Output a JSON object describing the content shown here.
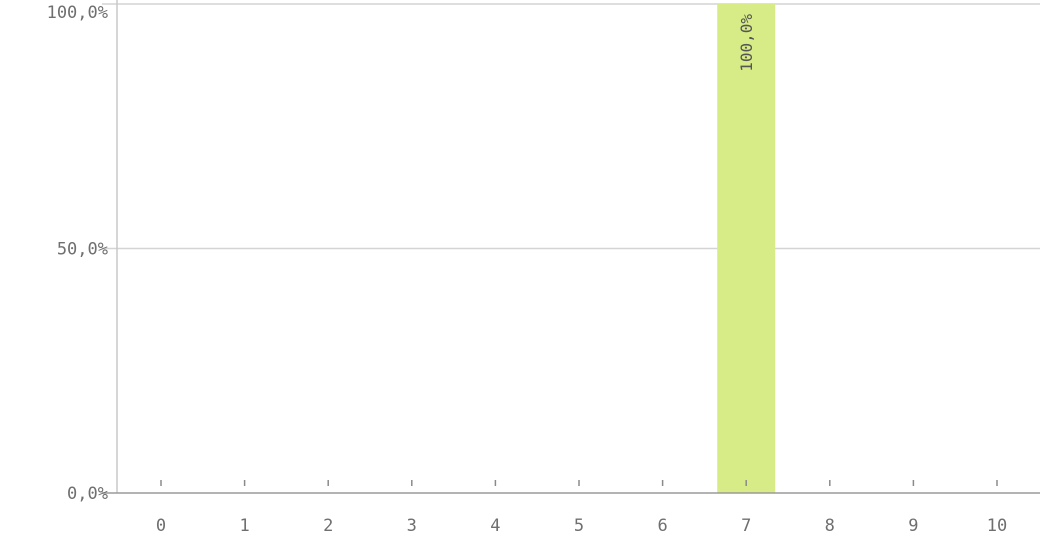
{
  "chart_data": {
    "type": "bar",
    "categories": [
      "0",
      "1",
      "2",
      "3",
      "4",
      "5",
      "6",
      "7",
      "8",
      "9",
      "10"
    ],
    "values": [
      0,
      0,
      0,
      0,
      0,
      0,
      0,
      100,
      0,
      0,
      0
    ],
    "data_labels": [
      "",
      "",
      "",
      "",
      "",
      "",
      "",
      "100,0%",
      "",
      "",
      ""
    ],
    "ylim": [
      0,
      100
    ],
    "y_ticks": [
      0,
      50,
      100
    ],
    "y_tick_labels": [
      "0,0%",
      "50,0%",
      "100,0%"
    ],
    "grid": true,
    "bar_color": "#d7ec86",
    "title": "",
    "xlabel": "",
    "ylabel": ""
  }
}
